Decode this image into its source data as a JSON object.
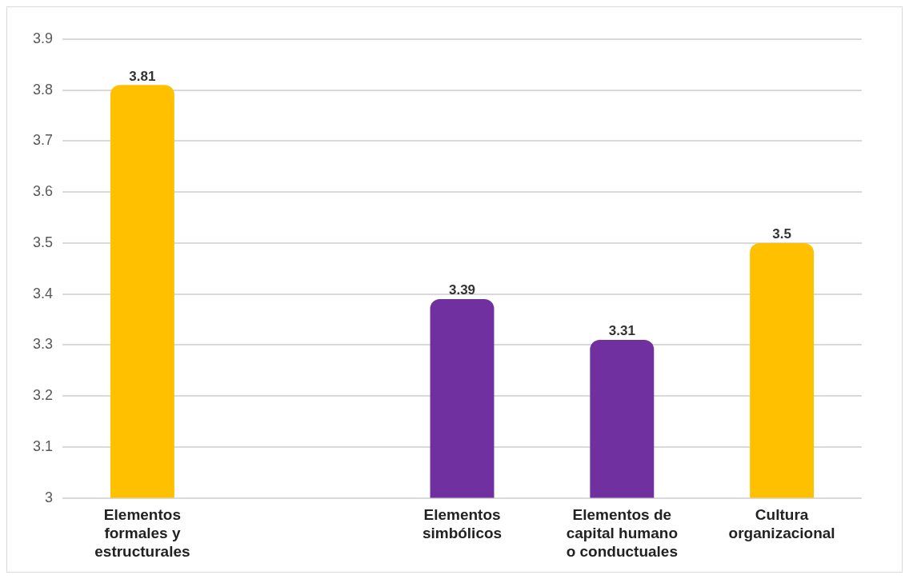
{
  "chart_data": {
    "type": "bar",
    "categories": [
      "Elementos formales y estructurales",
      null,
      "Elementos simbólicos",
      "Elementos de capital humano o conductuales",
      "Cultura organizacional"
    ],
    "values": [
      3.81,
      null,
      3.39,
      3.31,
      3.5
    ],
    "colors": [
      "#ffc000",
      "#ffc000",
      "#7030a0",
      "#7030a0",
      "#ffc000"
    ],
    "ylim": [
      3,
      3.9
    ],
    "yticks": [
      3,
      3.1,
      3.2,
      3.3,
      3.4,
      3.5,
      3.6,
      3.7,
      3.8,
      3.9
    ],
    "grid": "y",
    "data_labels": true,
    "legend": false
  }
}
